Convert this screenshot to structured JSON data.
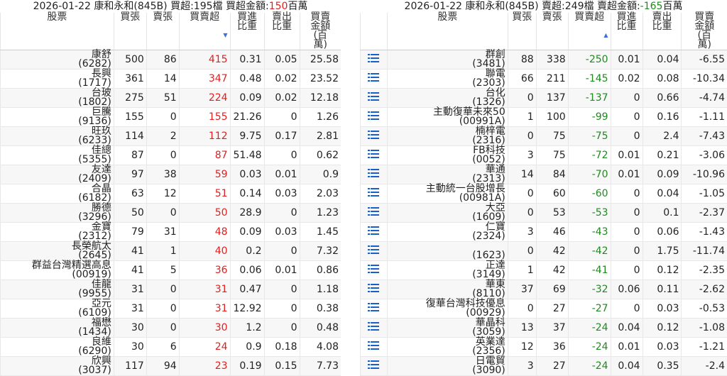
{
  "left": {
    "header": {
      "title": "2026-01-22 康和永和(845B)",
      "count": "買超:195檔",
      "amount_label": "買超金額:",
      "amount": 150,
      "amount_unit": "百萬"
    },
    "columns": [
      "股票",
      "買張",
      "賣張",
      "買賣超",
      "買進比重",
      "賣出比重",
      "買賣金額(百萬)"
    ],
    "rows": [
      [
        "康舒",
        "(6282)",
        500,
        86,
        415,
        0.31,
        0.05,
        25.58
      ],
      [
        "長興",
        "(1717)",
        361,
        14,
        347,
        0.48,
        0.02,
        23.52
      ],
      [
        "台玻",
        "(1802)",
        275,
        51,
        224,
        0.09,
        0.02,
        12.18
      ],
      [
        "巨騰",
        "(9136)",
        155,
        0,
        155,
        21.26,
        0,
        1.26
      ],
      [
        "旺玖",
        "(6233)",
        114,
        2,
        112,
        9.75,
        0.17,
        2.81
      ],
      [
        "佳總",
        "(5355)",
        87,
        0,
        87,
        51.48,
        0,
        0.62
      ],
      [
        "友達",
        "(2409)",
        97,
        38,
        59,
        0.03,
        0.01,
        0.9
      ],
      [
        "合晶",
        "(6182)",
        63,
        12,
        51,
        0.14,
        0.03,
        2.03
      ],
      [
        "勝德",
        "(3296)",
        50,
        0,
        50,
        28.9,
        0,
        1.23
      ],
      [
        "金寶",
        "(2312)",
        79,
        31,
        48,
        0.09,
        0.03,
        1.45
      ],
      [
        "長榮航太",
        "(2645)",
        41,
        1,
        40,
        0.2,
        0,
        7.32
      ],
      [
        "群益台灣精選高息",
        "(00919)",
        41,
        5,
        36,
        0.06,
        0.01,
        0.86
      ],
      [
        "佳龍",
        "(9955)",
        31,
        0,
        31,
        0.47,
        0,
        1.18
      ],
      [
        "亞元",
        "(6109)",
        31,
        0,
        31,
        12.92,
        0,
        0.38
      ],
      [
        "福懋",
        "(1434)",
        30,
        0,
        30,
        1.2,
        0,
        0.48
      ],
      [
        "良維",
        "(6290)",
        30,
        6,
        24,
        0.9,
        0.18,
        4.08
      ],
      [
        "欣興",
        "(3037)",
        117,
        94,
        23,
        0.19,
        0.15,
        7.73
      ]
    ]
  },
  "right": {
    "header": {
      "title": "2026-01-22 康和永和(845B)",
      "count": "賣超:249檔",
      "amount_label": "賣超金額:",
      "amount": -165,
      "amount_unit": "百萬"
    },
    "columns": [
      "股票",
      "買張",
      "賣張",
      "買賣超",
      "買進比重",
      "賣出比重",
      "買賣金額(百萬)"
    ],
    "rows": [
      [
        "群創",
        "(3481)",
        88,
        338,
        -250,
        0.01,
        0.04,
        -6.55
      ],
      [
        "聯電",
        "(2303)",
        66,
        211,
        -145,
        0.02,
        0.08,
        -10.34
      ],
      [
        "台化",
        "(1326)",
        0,
        137,
        -137,
        0,
        0.66,
        -4.74
      ],
      [
        "主動復華未來50",
        "(00991A)",
        1,
        100,
        -99,
        0,
        0.16,
        -1.11
      ],
      [
        "楠梓電",
        "(2316)",
        0,
        75,
        -75,
        0,
        2.4,
        -7.43
      ],
      [
        "FB科技",
        "(0052)",
        3,
        75,
        -72,
        0.01,
        0.21,
        -3.06
      ],
      [
        "華通",
        "(2313)",
        14,
        84,
        -70,
        0.01,
        0.09,
        -10.96
      ],
      [
        "主動統一台股增長",
        "(00981A)",
        0,
        60,
        -60,
        0,
        0.04,
        -1.05
      ],
      [
        "大亞",
        "(1609)",
        0,
        53,
        -53,
        0,
        0.1,
        -2.37
      ],
      [
        "仁寶",
        "(2324)",
        3,
        46,
        -43,
        0,
        0.06,
        -1.43
      ],
      [
        null,
        "(1623)",
        0,
        42,
        -42,
        0,
        1.75,
        -11.74
      ],
      [
        "正達",
        "(3149)",
        1,
        42,
        -41,
        0,
        0.12,
        -2.35
      ],
      [
        "華東",
        "(8110)",
        37,
        69,
        -32,
        0.06,
        0.11,
        -2.62
      ],
      [
        "復華台灣科技優息",
        "(00929)",
        0,
        27,
        -27,
        0,
        0.03,
        -0.53
      ],
      [
        "華晶科",
        "(3059)",
        13,
        37,
        -24,
        0.04,
        0.12,
        -1.08
      ],
      [
        "英業達",
        "(2356)",
        12,
        36,
        -24,
        0.01,
        0.03,
        -1.21
      ],
      [
        "日電貿",
        "(3090)",
        3,
        27,
        -24,
        0.04,
        0.35,
        -2.4
      ]
    ]
  }
}
